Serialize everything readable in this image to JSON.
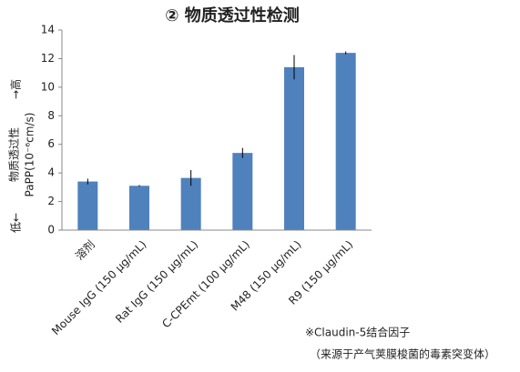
{
  "chart_data": {
    "type": "bar",
    "title": "② 物质透过性检测",
    "y_label_low": "低←",
    "y_label_main": "物质透过性",
    "y_label_high": "→高",
    "y_label_unit": "PaPP(10⁻⁶cm/s)",
    "categories": [
      "溶剂",
      "Mouse IgG (150 μg/mL)",
      "Rat IgG (150 μg/mL)",
      "C-CPEmt (100 μg/mL)",
      "M48 (150 μg/mL)",
      "R9 (150 μg/mL)"
    ],
    "values": [
      3.4,
      3.1,
      3.65,
      5.4,
      11.4,
      12.4
    ],
    "errors": [
      0.2,
      0.05,
      0.55,
      0.35,
      0.85,
      0.1
    ],
    "color": "#4f81bd",
    "ylim": [
      0,
      14
    ],
    "yticks": [
      0,
      2,
      4,
      6,
      8,
      10,
      12,
      14
    ],
    "notes": [
      "※Claudin-5结合因子",
      "（来源于产气荚膜梭菌的毒素突变体）"
    ]
  }
}
